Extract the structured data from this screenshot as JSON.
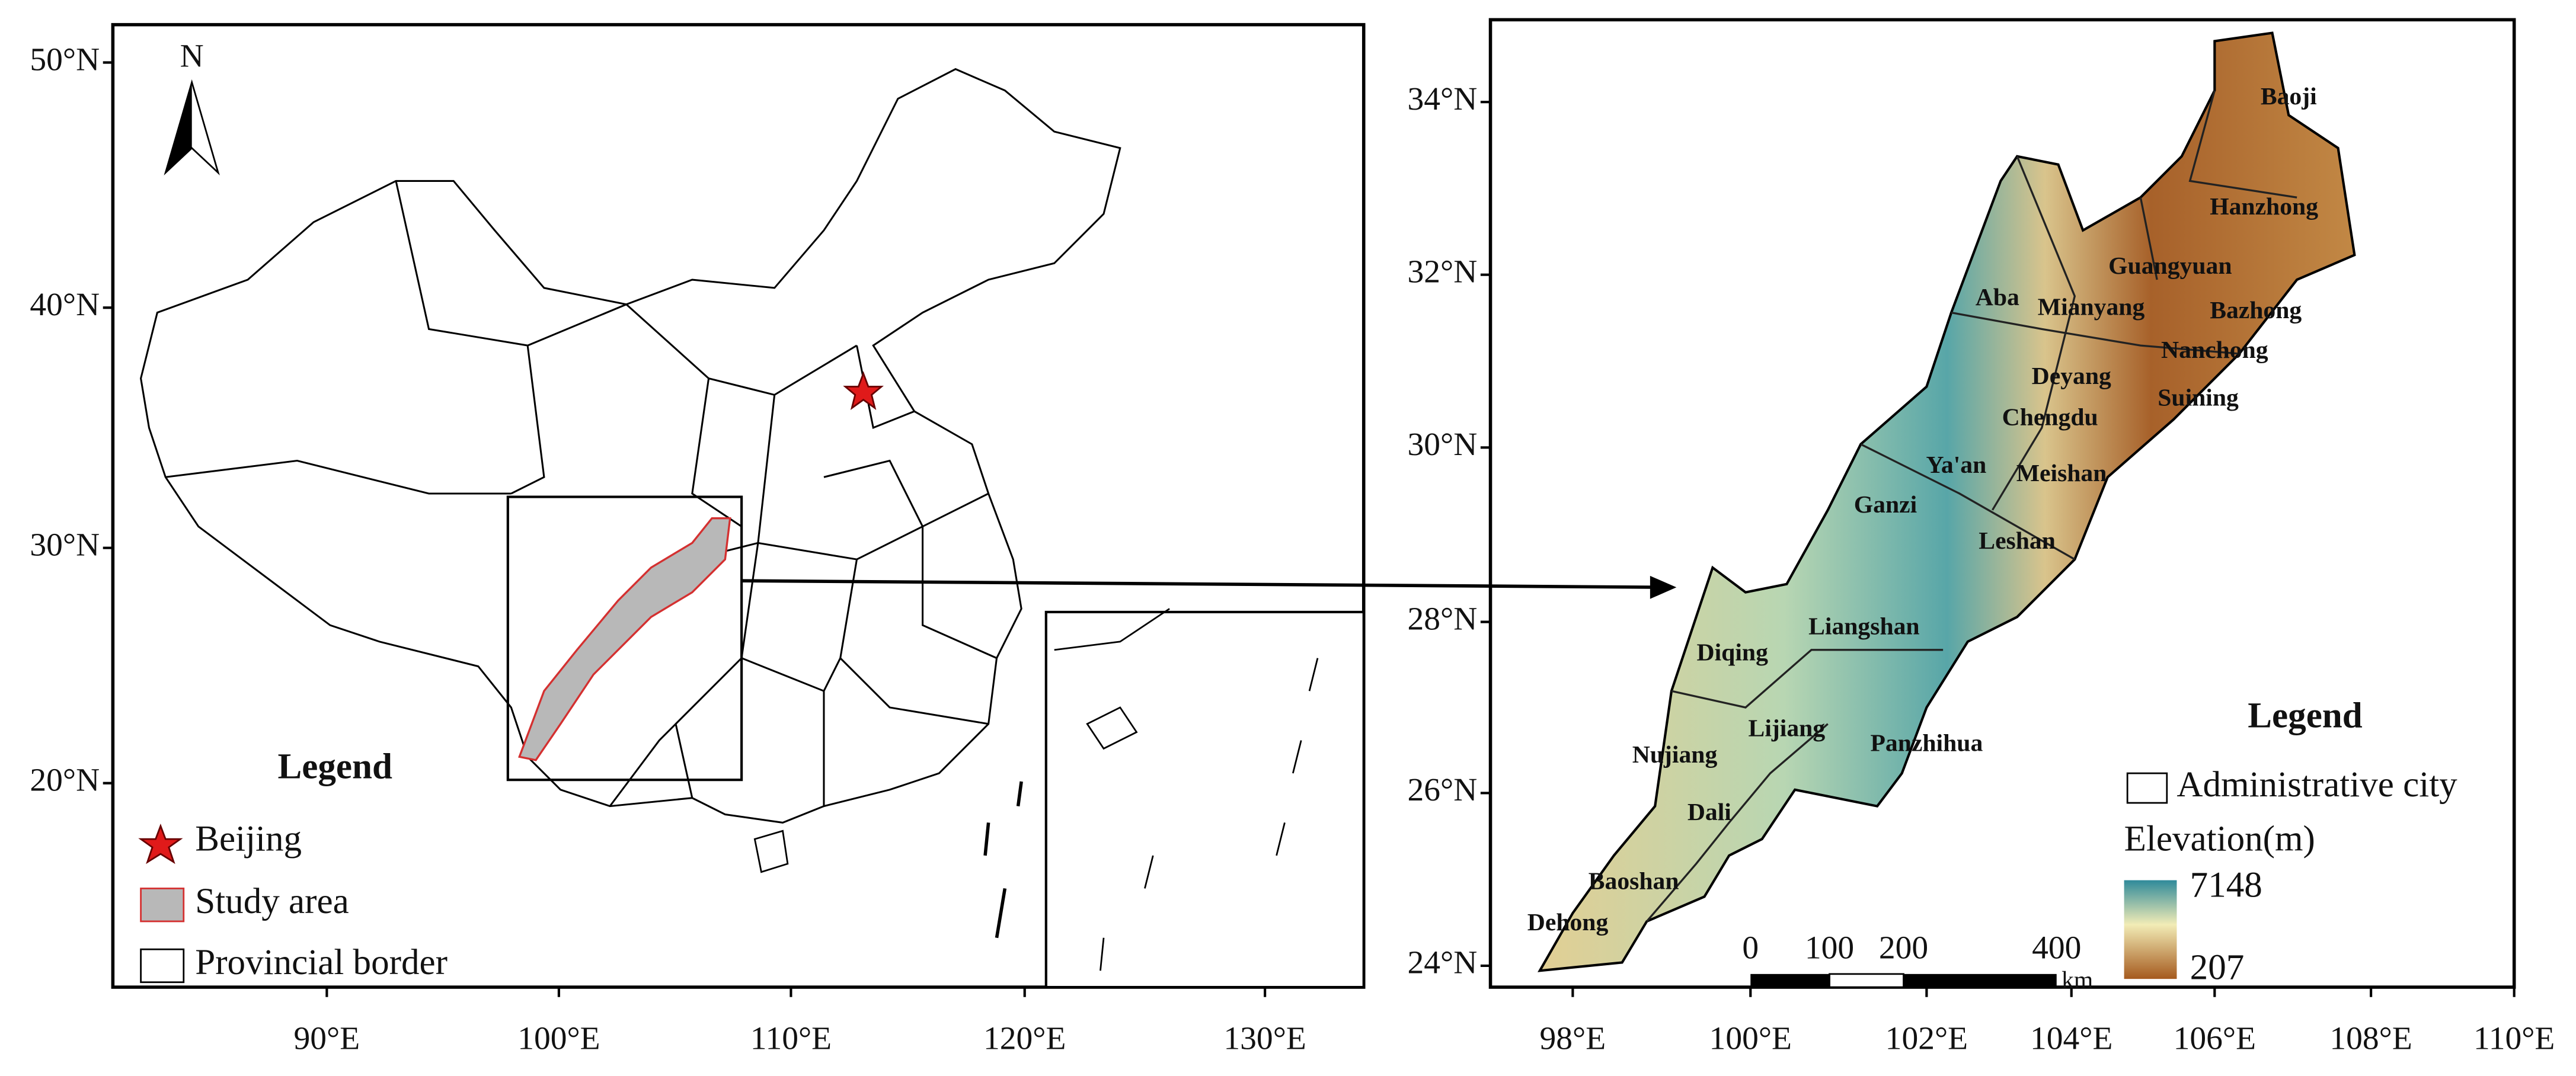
{
  "left_map": {
    "north_label": "N",
    "lat_labels": [
      "50°N",
      "40°N",
      "30°N",
      "20°N"
    ],
    "lon_labels": [
      "90°E",
      "100°E",
      "110°E",
      "120°E",
      "130°E"
    ],
    "legend": {
      "title": "Legend",
      "items": [
        "Beijing",
        "Study area",
        "Provincial  border"
      ]
    }
  },
  "right_map": {
    "lat_labels": [
      "34°N",
      "32°N",
      "30°N",
      "28°N",
      "26°N",
      "24°N"
    ],
    "lon_labels": [
      "98°E",
      "100°E",
      "102°E",
      "104°E",
      "106°E",
      "108°E",
      "110°E"
    ],
    "cities": [
      "Baoji",
      "Hanzhong",
      "Guangyuan",
      "Aba",
      "Mianyang",
      "Bazhong",
      "Nanchong",
      "Deyang",
      "Suining",
      "Chengdu",
      "Ya'an",
      "Meishan",
      "Ganzi",
      "Leshan",
      "Liangshan",
      "Diqing",
      "Lijiang",
      "Panzhihua",
      "Nujiang",
      "Dali",
      "Baoshan",
      "Dehong"
    ],
    "legend": {
      "title": "Legend",
      "items": [
        "Administrative city"
      ],
      "elevation_title": "Elevation(m)",
      "elevation_max": 7148,
      "elevation_min": 207
    },
    "scale_bar": {
      "labels": [
        0,
        100,
        200,
        400
      ],
      "unit": "km"
    }
  }
}
